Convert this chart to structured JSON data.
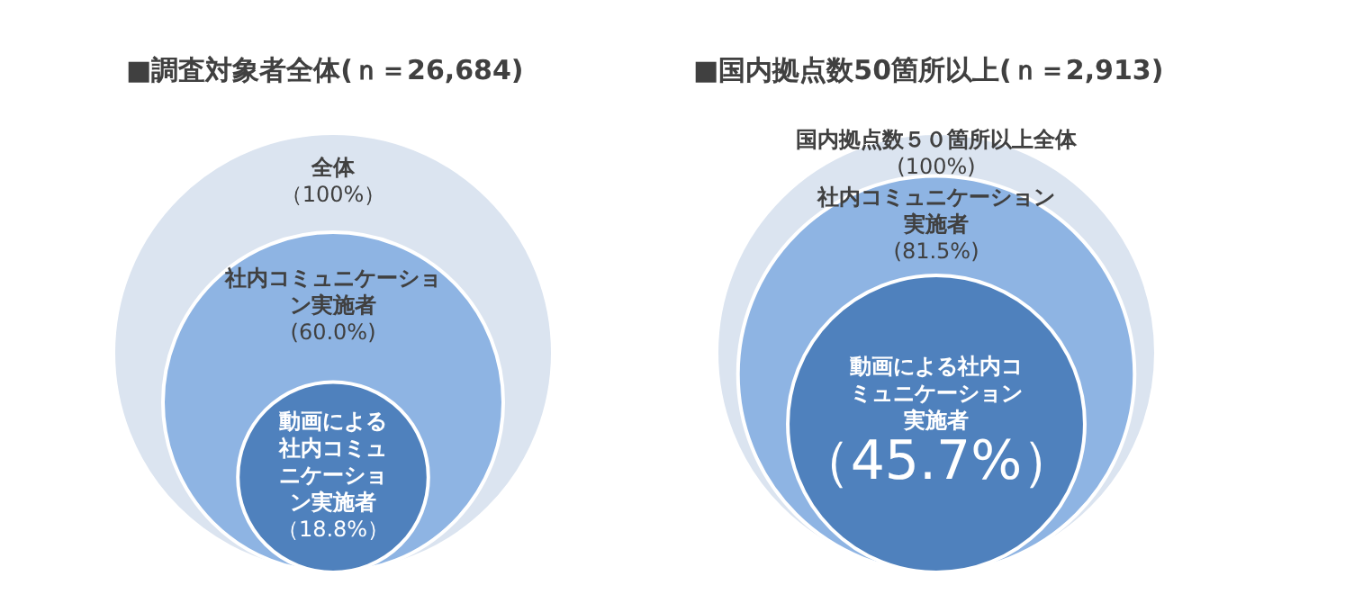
{
  "chart_data": [
    {
      "type": "other",
      "title": "■調査対象者全体(ｎ＝26,684)",
      "categories": [
        "全体",
        "社内コミュニケーション実施者",
        "動画による社内コミュニケーション実施者"
      ],
      "values": [
        100,
        60.0,
        18.8
      ],
      "value_labels": [
        "（100%）",
        "(60.0%)",
        "（18.8%）"
      ],
      "colors": [
        "#dbe4f0",
        "#8eb4e3",
        "#4f81bd"
      ]
    },
    {
      "type": "other",
      "title": "■国内拠点数50箇所以上(ｎ＝2,913)",
      "categories": [
        "国内拠点数５０箇所以上全体",
        "社内コミュニケーション実施者",
        "動画による社内コミュニケーション実施者"
      ],
      "values": [
        100,
        81.5,
        45.7
      ],
      "value_labels": [
        "(100%)",
        "(81.5%)",
        "（45.7%）"
      ],
      "colors": [
        "#dbe4f0",
        "#8eb4e3",
        "#4f81bd"
      ]
    }
  ]
}
